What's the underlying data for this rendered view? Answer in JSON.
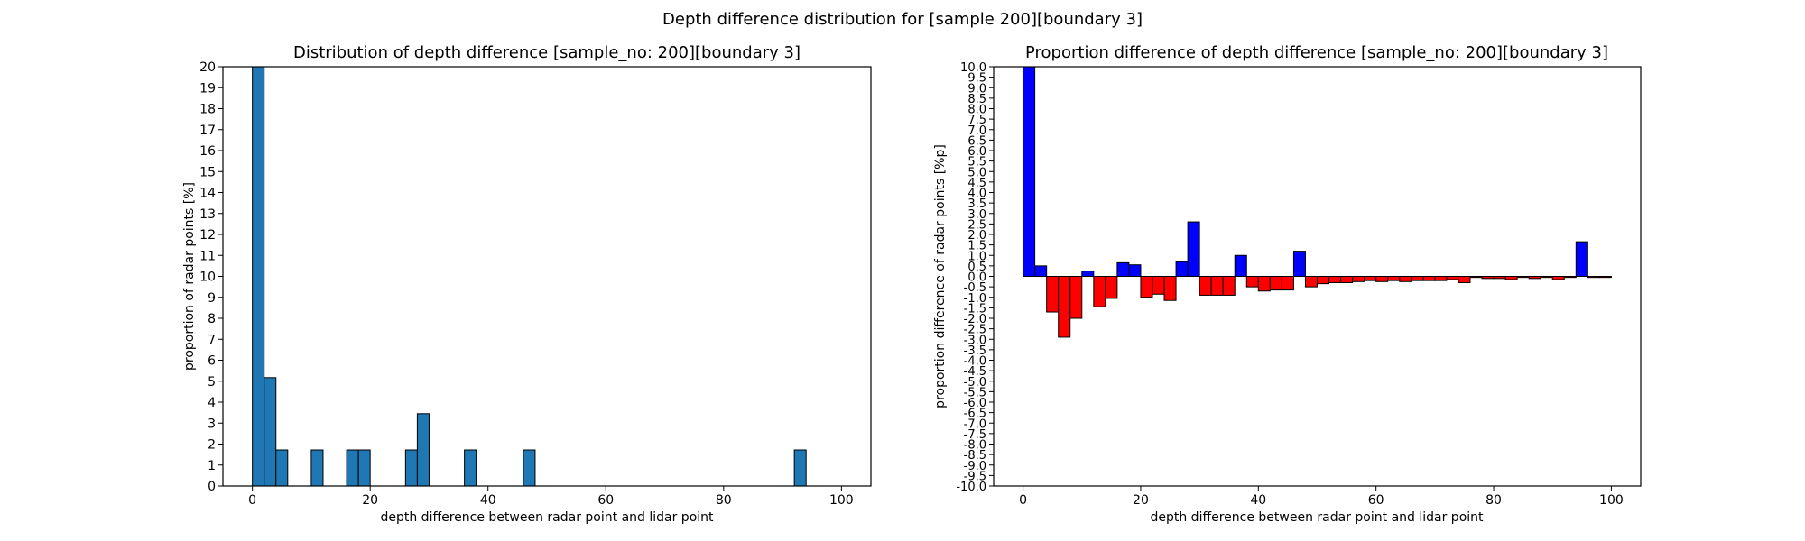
{
  "figure": {
    "suptitle": "Depth difference distribution for [sample 200][boundary 3]"
  },
  "chart_data": [
    {
      "type": "bar",
      "title": "Distribution of depth difference [sample_no: 200][boundary 3]",
      "xlabel": "depth difference between radar point and lidar point",
      "ylabel": "proportion of radar points [%]",
      "xlim": [
        -5,
        105
      ],
      "ylim": [
        0,
        20
      ],
      "xticks": [
        0,
        20,
        40,
        60,
        80,
        100
      ],
      "yticks": [
        0,
        1,
        2,
        3,
        4,
        5,
        6,
        7,
        8,
        9,
        10,
        11,
        12,
        13,
        14,
        15,
        16,
        17,
        18,
        19,
        20
      ],
      "bin_width": 2,
      "bin_starts": [
        0,
        2,
        4,
        10,
        16,
        18,
        26,
        28,
        36,
        46,
        92
      ],
      "values": [
        20,
        5.17,
        1.72,
        1.72,
        1.72,
        1.72,
        1.72,
        3.45,
        1.72,
        1.72,
        1.72
      ],
      "colors": {
        "bar": "#1f77b4",
        "edge": "#000000"
      },
      "grid": false
    },
    {
      "type": "bar",
      "title": "Proportion difference of depth difference [sample_no: 200][boundary 3]",
      "xlabel": "depth difference between radar point and lidar point",
      "ylabel": "proportion difference of radar points [%p]",
      "xlim": [
        -5,
        105
      ],
      "ylim": [
        -10,
        10
      ],
      "xticks": [
        0,
        20,
        40,
        60,
        80,
        100
      ],
      "yticks": [
        "-10.0",
        "-9.5",
        "-9.0",
        "-8.5",
        "-8.0",
        "-7.5",
        "-7.0",
        "-6.5",
        "-6.0",
        "-5.5",
        "-5.0",
        "-4.5",
        "-4.0",
        "-3.5",
        "-3.0",
        "-2.5",
        "-2.0",
        "-1.5",
        "-1.0",
        "-0.5",
        "0.0",
        "0.5",
        "1.0",
        "1.5",
        "2.0",
        "2.5",
        "3.0",
        "3.5",
        "4.0",
        "4.5",
        "5.0",
        "5.5",
        "6.0",
        "6.5",
        "7.0",
        "7.5",
        "8.0",
        "8.5",
        "9.0",
        "9.5",
        "10.0"
      ],
      "bin_width": 2,
      "bin_starts": [
        0,
        2,
        4,
        6,
        8,
        10,
        12,
        14,
        16,
        18,
        20,
        22,
        24,
        26,
        28,
        30,
        32,
        34,
        36,
        38,
        40,
        42,
        44,
        46,
        48,
        50,
        52,
        54,
        56,
        58,
        60,
        62,
        64,
        66,
        68,
        70,
        72,
        74,
        76,
        78,
        80,
        82,
        84,
        86,
        88,
        90,
        92,
        94,
        96,
        98
      ],
      "values": [
        10,
        0.5,
        -1.7,
        -2.9,
        -2.0,
        0.25,
        -1.45,
        -1.05,
        0.65,
        0.55,
        -1.0,
        -0.85,
        -1.15,
        0.7,
        2.6,
        -0.9,
        -0.9,
        -0.9,
        1.0,
        -0.5,
        -0.7,
        -0.65,
        -0.65,
        1.2,
        -0.5,
        -0.35,
        -0.3,
        -0.3,
        -0.25,
        -0.2,
        -0.25,
        -0.2,
        -0.25,
        -0.2,
        -0.2,
        -0.2,
        -0.15,
        -0.3,
        -0.05,
        -0.1,
        -0.1,
        -0.15,
        -0.05,
        -0.1,
        -0.05,
        -0.15,
        -0.05,
        1.65,
        -0.05,
        -0.05
      ],
      "colors": {
        "positive": "#0000ff",
        "negative": "#ff0000",
        "edge": "#000000"
      },
      "grid": false
    }
  ]
}
